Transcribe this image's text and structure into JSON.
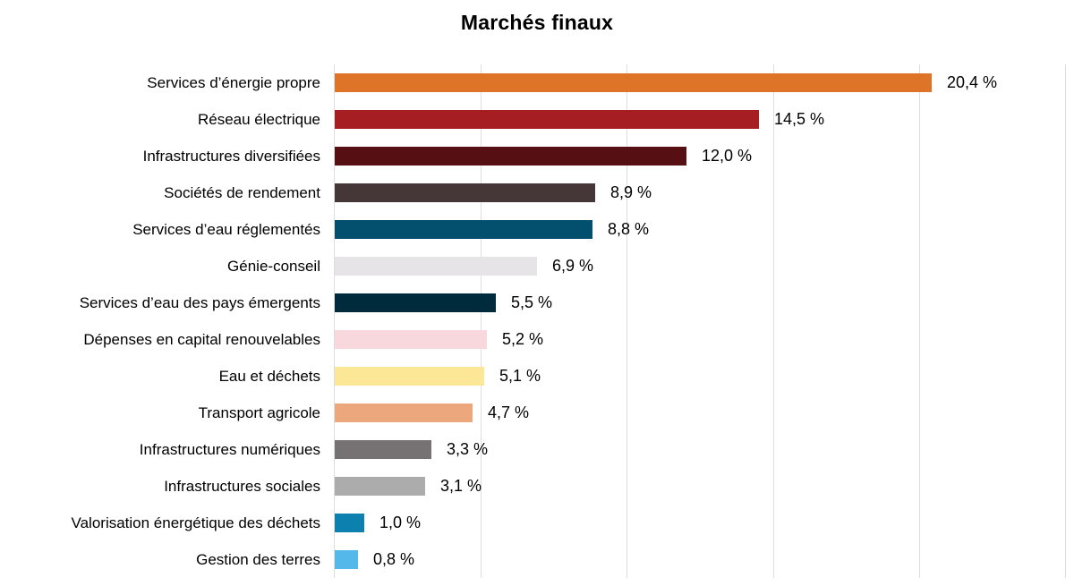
{
  "title": "Marchés finaux",
  "chart_data": {
    "type": "bar",
    "orientation": "horizontal",
    "title": "Marchés finaux",
    "categories": [
      "Services d’énergie propre",
      "Réseau électrique",
      "Infrastructures diversifiées",
      "Sociétés de rendement",
      "Services d’eau réglementés",
      "Génie-conseil",
      "Services d’eau des pays émergents",
      "Dépenses en capital renouvelables",
      "Eau et déchets",
      "Transport agricole",
      "Infrastructures numériques",
      "Infrastructures sociales",
      "Valorisation énergétique des déchets",
      "Gestion des terres"
    ],
    "values": [
      20.4,
      14.5,
      12.0,
      8.9,
      8.8,
      6.9,
      5.5,
      5.2,
      5.1,
      4.7,
      3.3,
      3.1,
      1.0,
      0.8
    ],
    "value_labels": [
      "20,4 %",
      "14,5 %",
      "12,0 %",
      "8,9 %",
      "8,8 %",
      "6,9 %",
      "5,5 %",
      "5,2 %",
      "5,1 %",
      "4,7 %",
      "3,3 %",
      "3,1 %",
      "1,0 %",
      "0,8 %"
    ],
    "bar_colors": [
      "#dd7428",
      "#a61e22",
      "#561014",
      "#453637",
      "#03506e",
      "#e6e4e6",
      "#002b3d",
      "#f8d8dc",
      "#fce797",
      "#eca87c",
      "#767172",
      "#adacad",
      "#0c80ae",
      "#55b8ea"
    ],
    "xlabel": "",
    "ylabel": "",
    "xlim": [
      0,
      25
    ],
    "gridline_interval": 5,
    "grid": true,
    "legend": "none"
  },
  "colors": {
    "gridline": "#dedde0",
    "title_text": "#000000",
    "label_text": "#000000",
    "background": "#ffffff"
  }
}
